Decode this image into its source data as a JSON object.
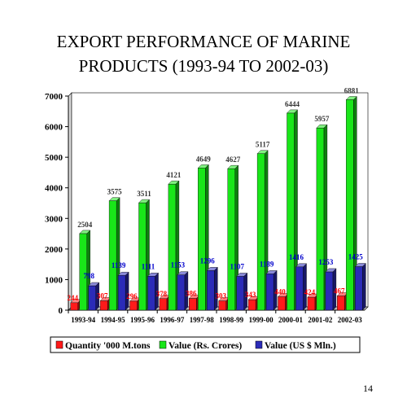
{
  "title_lines": [
    "EXPORT PERFORMANCE OF MARINE",
    "PRODUCTS (1993-94 TO 2002-03)"
  ],
  "page_number": "14",
  "colors": {
    "quantity": "#ff1a1a",
    "value_rs": "#19e619",
    "value_usd": "#2b2bb8",
    "quantity_label": "#ff0000",
    "value_rs_label": "#333333",
    "value_usd_label": "#0000cc"
  },
  "chart_data": {
    "type": "bar",
    "style": "3d-cylinder",
    "title": "EXPORT PERFORMANCE OF MARINE PRODUCTS (1993-94 TO 2002-03)",
    "categories": [
      "1993-94",
      "1994-95",
      "1995-96",
      "1996-97",
      "1997-98",
      "1998-99",
      "1999-00",
      "2000-01",
      "2001-02",
      "2002-03"
    ],
    "series": [
      {
        "name": "Quantity '000 M.tons",
        "values": [
          244,
          307,
          296,
          378,
          386,
          303,
          343,
          440,
          424,
          467
        ]
      },
      {
        "name": "Value (Rs. Crores)",
        "values": [
          2504,
          3575,
          3511,
          4121,
          4649,
          4627,
          5117,
          6444,
          5957,
          6881
        ]
      },
      {
        "name": "Value (US $ Mln.)",
        "values": [
          798,
          1139,
          1111,
          1153,
          1296,
          1107,
          1189,
          1416,
          1253,
          1425
        ]
      }
    ],
    "ylim": [
      0,
      7000
    ],
    "yticks": [
      0,
      1000,
      2000,
      3000,
      4000,
      5000,
      6000,
      7000
    ],
    "grid": false,
    "legend": "bottom"
  }
}
